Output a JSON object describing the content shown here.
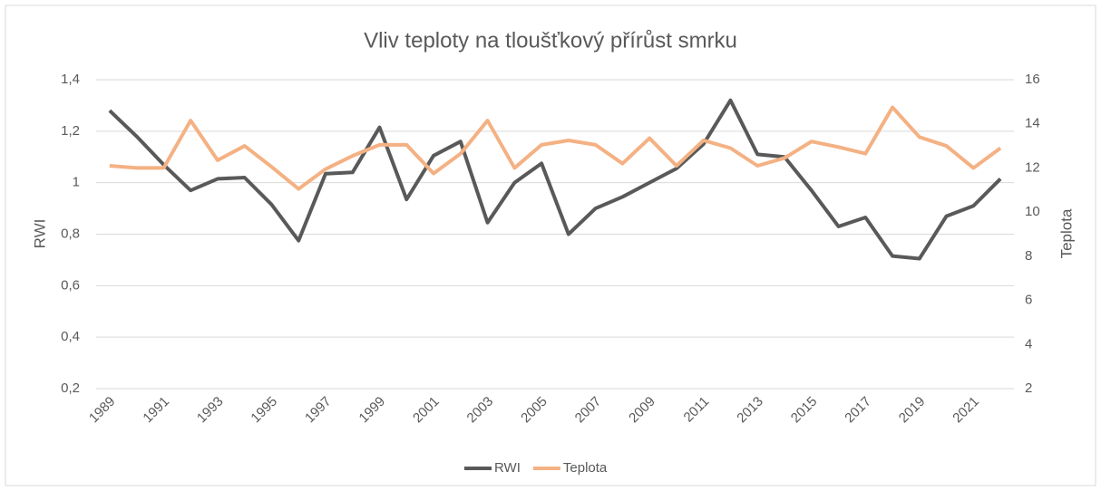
{
  "chart_data": {
    "type": "line",
    "title": "Vliv teploty na tloušťkový přírůst smrku",
    "y_label": "RWI",
    "y2_label": "Teplota",
    "categories": [
      "1989",
      null,
      "1991",
      null,
      "1993",
      null,
      "1995",
      null,
      "1997",
      null,
      "1999",
      null,
      "2001",
      null,
      "2003",
      null,
      "2005",
      null,
      "2007",
      null,
      "2009",
      null,
      "2011",
      null,
      "2013",
      null,
      "2015",
      null,
      "2017",
      null,
      "2019",
      null,
      "2021",
      null
    ],
    "series": [
      {
        "name": "RWI",
        "color": "#595959",
        "values": [
          1.28,
          1.18,
          1.07,
          0.97,
          1.015,
          1.02,
          0.915,
          0.775,
          1.035,
          1.04,
          1.215,
          0.935,
          1.105,
          1.16,
          0.845,
          1.0,
          1.075,
          0.8,
          0.9,
          0.945,
          1.0,
          1.055,
          1.15,
          1.32,
          1.11,
          1.1,
          0.97,
          0.83,
          0.865,
          0.715,
          0.705,
          0.87,
          0.91,
          1.015
        ]
      },
      {
        "name": "Teplota",
        "color": "#f4b183",
        "axis": "y2",
        "values": [
          12.1,
          12.0,
          12.0,
          14.15,
          12.35,
          13.0,
          12.05,
          11.05,
          11.95,
          12.55,
          13.05,
          13.05,
          11.75,
          12.65,
          14.15,
          12.0,
          13.05,
          13.25,
          13.05,
          12.2,
          13.35,
          12.1,
          13.25,
          12.9,
          12.1,
          12.45,
          13.2,
          12.95,
          12.65,
          14.75,
          13.4,
          13.0,
          12.0,
          12.9
        ]
      }
    ],
    "ylim": [
      0.2,
      1.4
    ],
    "yticks": [
      {
        "value": 0.2,
        "label": "0,2"
      },
      {
        "value": 0.4,
        "label": "0,4"
      },
      {
        "value": 0.6,
        "label": "0,6"
      },
      {
        "value": 0.8,
        "label": "0,8"
      },
      1,
      {
        "value": 1.2,
        "label": "1,2"
      },
      {
        "value": 1.4,
        "label": "1,4"
      }
    ],
    "y2lim": [
      2,
      16
    ],
    "y2ticks": [
      2,
      4,
      6,
      8,
      10,
      12,
      14,
      16
    ],
    "grid": true,
    "legend": "bottom"
  }
}
